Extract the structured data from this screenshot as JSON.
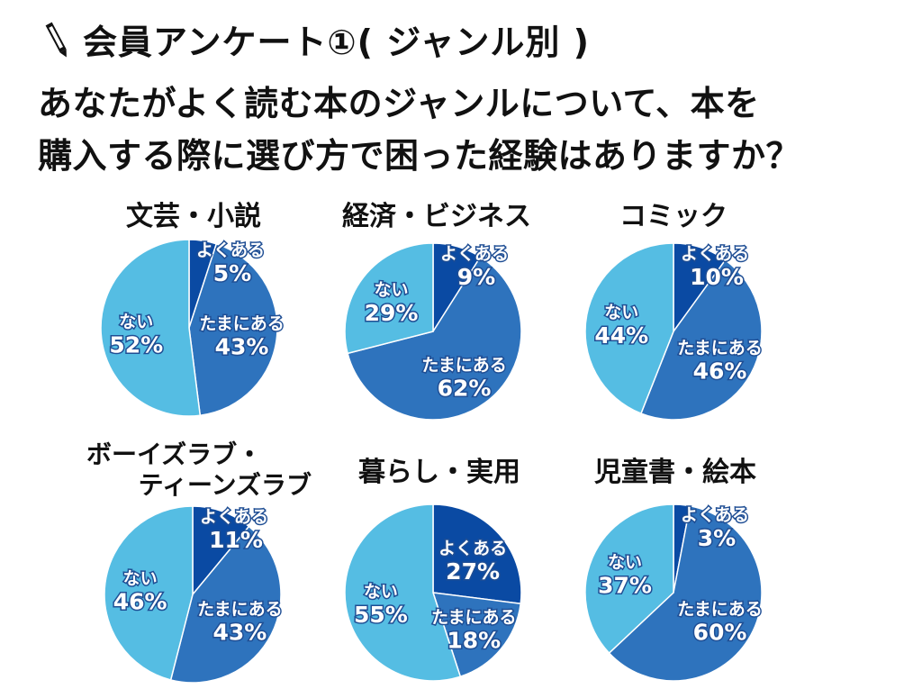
{
  "header": {
    "title": "会員アンケート①( ジャンル別 )",
    "question_line1": "あなたがよく読む本のジャンルについて、本を",
    "question_line2": "購入する際に選び方で困った経験はありますか？"
  },
  "colors": {
    "often": "#0a4aa3",
    "sometimes": "#2e73bd",
    "never": "#55bde3",
    "text": "#111111",
    "label_fill": "#ffffff",
    "label_stroke": "#1f4e94"
  },
  "chart_data": [
    {
      "type": "pie",
      "title": "文芸・小説",
      "slices": [
        {
          "label": "よくある",
          "value": 5,
          "display": "5%"
        },
        {
          "label": "たまにある",
          "value": 43,
          "display": "43%"
        },
        {
          "label": "ない",
          "value": 52,
          "display": "52%"
        }
      ]
    },
    {
      "type": "pie",
      "title": "経済・ビジネス",
      "slices": [
        {
          "label": "よくある",
          "value": 9,
          "display": "9%"
        },
        {
          "label": "たまにある",
          "value": 62,
          "display": "62%"
        },
        {
          "label": "ない",
          "value": 29,
          "display": "29%"
        }
      ]
    },
    {
      "type": "pie",
      "title": "コミック",
      "slices": [
        {
          "label": "よくある",
          "value": 10,
          "display": "10%"
        },
        {
          "label": "たまにある",
          "value": 46,
          "display": "46%"
        },
        {
          "label": "ない",
          "value": 44,
          "display": "44%"
        }
      ]
    },
    {
      "type": "pie",
      "title": "ボーイズラブ・\nティーンズラブ",
      "title_line1": "ボーイズラブ・",
      "title_line2": "ティーンズラブ",
      "slices": [
        {
          "label": "よくある",
          "value": 11,
          "display": "11%"
        },
        {
          "label": "たまにある",
          "value": 43,
          "display": "43%"
        },
        {
          "label": "ない",
          "value": 46,
          "display": "46%"
        }
      ]
    },
    {
      "type": "pie",
      "title": "暮らし・実用",
      "slices": [
        {
          "label": "よくある",
          "value": 27,
          "display": "27%"
        },
        {
          "label": "たまにある",
          "value": 18,
          "display": "18%"
        },
        {
          "label": "ない",
          "value": 55,
          "display": "55%"
        }
      ]
    },
    {
      "type": "pie",
      "title": "児童書・絵本",
      "slices": [
        {
          "label": "よくある",
          "value": 3,
          "display": "3%"
        },
        {
          "label": "たまにある",
          "value": 60,
          "display": "60%"
        },
        {
          "label": "ない",
          "value": 37,
          "display": "37%"
        }
      ]
    }
  ]
}
